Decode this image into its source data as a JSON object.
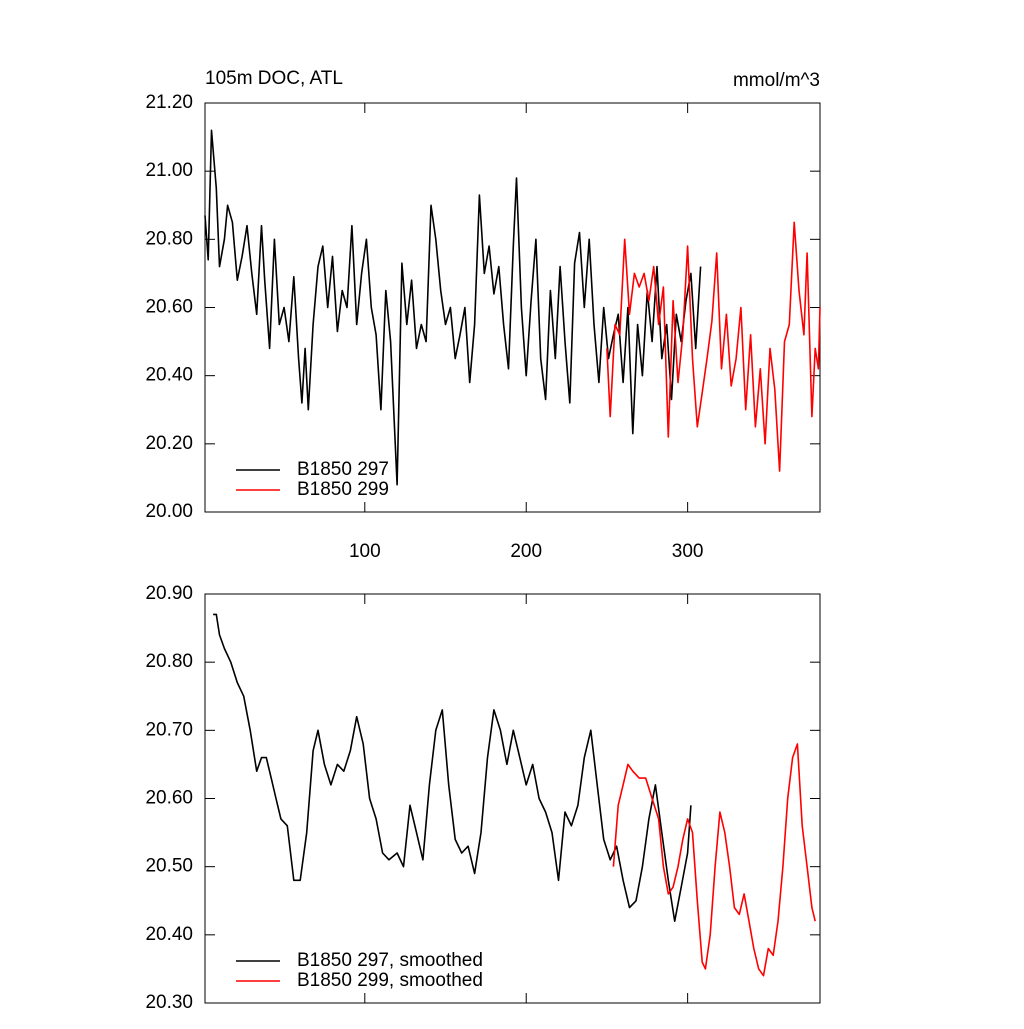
{
  "chart_data": [
    {
      "type": "line",
      "title": "105m DOC, ATL",
      "units": "mmol/m^3",
      "xlim": [
        1,
        382
      ],
      "xticks": [
        100,
        200,
        300
      ],
      "show_xtick_labels": true,
      "ylim": [
        20,
        21.2
      ],
      "yticks": [
        {
          "value": 20,
          "label": "20.00"
        },
        {
          "value": 20.2,
          "label": "20.20"
        },
        {
          "value": 20.4,
          "label": "20.40"
        },
        {
          "value": 20.6,
          "label": "20.60"
        },
        {
          "value": 20.8,
          "label": "20.80"
        },
        {
          "value": 21,
          "label": "21.00"
        },
        {
          "value": 21.2,
          "label": "21.20"
        }
      ],
      "legend": "lower left",
      "series": [
        {
          "name": "B1850 297",
          "color": "#000000",
          "x": [
            1,
            3,
            5,
            8,
            10,
            13,
            15,
            18,
            21,
            24,
            27,
            30,
            33,
            36,
            38,
            41,
            44,
            47,
            50,
            53,
            56,
            59,
            61,
            63,
            65,
            68,
            71,
            74,
            77,
            80,
            83,
            86,
            89,
            92,
            95,
            98,
            101,
            104,
            107,
            110,
            113,
            116,
            120,
            123,
            126,
            129,
            132,
            135,
            138,
            141,
            144,
            147,
            150,
            153,
            156,
            159,
            162,
            165,
            168,
            171,
            174,
            177,
            180,
            183,
            186,
            189,
            192,
            194,
            197,
            200,
            203,
            206,
            209,
            212,
            215,
            218,
            221,
            224,
            227,
            230,
            233,
            236,
            239,
            242,
            245,
            248,
            251,
            254,
            257,
            260,
            263,
            266,
            269,
            272,
            275,
            278,
            281,
            284,
            287,
            290,
            293,
            296,
            299,
            302,
            305,
            308
          ],
          "values": [
            20.87,
            20.74,
            21.12,
            20.95,
            20.72,
            20.8,
            20.9,
            20.85,
            20.68,
            20.75,
            20.84,
            20.7,
            20.58,
            20.84,
            20.68,
            20.48,
            20.8,
            20.55,
            20.6,
            20.5,
            20.69,
            20.45,
            20.32,
            20.48,
            20.3,
            20.55,
            20.72,
            20.78,
            20.6,
            20.75,
            20.53,
            20.65,
            20.6,
            20.84,
            20.55,
            20.7,
            20.8,
            20.6,
            20.52,
            20.3,
            20.65,
            20.5,
            20.08,
            20.73,
            20.55,
            20.68,
            20.48,
            20.55,
            20.5,
            20.9,
            20.8,
            20.65,
            20.55,
            20.6,
            20.45,
            20.52,
            20.6,
            20.38,
            20.55,
            20.93,
            20.7,
            20.78,
            20.64,
            20.72,
            20.55,
            20.42,
            20.78,
            20.98,
            20.6,
            20.4,
            20.62,
            20.8,
            20.45,
            20.33,
            20.65,
            20.45,
            20.72,
            20.5,
            20.32,
            20.73,
            20.82,
            20.6,
            20.8,
            20.55,
            20.38,
            20.6,
            20.45,
            20.52,
            20.58,
            20.38,
            20.6,
            20.23,
            20.55,
            20.4,
            20.65,
            20.5,
            20.72,
            20.45,
            20.55,
            20.33,
            20.58,
            20.5,
            20.62,
            20.7,
            20.48,
            20.72
          ]
        },
        {
          "name": "B1850 299",
          "color": "#ff0000",
          "x": [
            250,
            252,
            255,
            258,
            261,
            264,
            267,
            270,
            273,
            276,
            279,
            282,
            285,
            288,
            291,
            294,
            297,
            300,
            303,
            306,
            309,
            312,
            315,
            318,
            321,
            324,
            327,
            330,
            333,
            336,
            339,
            342,
            345,
            348,
            351,
            354,
            357,
            360,
            363,
            366,
            369,
            372,
            374,
            377,
            379,
            381,
            382
          ],
          "values": [
            20.48,
            20.28,
            20.55,
            20.52,
            20.8,
            20.58,
            20.7,
            20.66,
            20.7,
            20.62,
            20.72,
            20.55,
            20.66,
            20.22,
            20.62,
            20.38,
            20.52,
            20.78,
            20.45,
            20.25,
            20.35,
            20.45,
            20.56,
            20.76,
            20.42,
            20.58,
            20.37,
            20.45,
            20.6,
            20.3,
            20.52,
            20.25,
            20.42,
            20.2,
            20.48,
            20.36,
            20.12,
            20.5,
            20.55,
            20.85,
            20.65,
            20.52,
            20.76,
            20.28,
            20.48,
            20.42,
            20.6
          ]
        }
      ]
    },
    {
      "type": "line",
      "xlim": [
        1,
        382
      ],
      "xticks": [
        100,
        200,
        300
      ],
      "show_xtick_labels": false,
      "ylim": [
        20.3,
        20.9
      ],
      "yticks": [
        {
          "value": 20.3,
          "label": "20.30"
        },
        {
          "value": 20.4,
          "label": "20.40"
        },
        {
          "value": 20.5,
          "label": "20.50"
        },
        {
          "value": 20.6,
          "label": "20.60"
        },
        {
          "value": 20.7,
          "label": "20.70"
        },
        {
          "value": 20.8,
          "label": "20.80"
        },
        {
          "value": 20.9,
          "label": "20.90"
        }
      ],
      "legend": "lower left",
      "series": [
        {
          "name": "B1850 297, smoothed",
          "color": "#000000",
          "x": [
            6,
            8,
            10,
            13,
            17,
            21,
            25,
            29,
            33,
            36,
            39,
            42,
            45,
            48,
            52,
            56,
            60,
            64,
            68,
            71,
            75,
            79,
            83,
            87,
            91,
            95,
            99,
            103,
            107,
            111,
            115,
            120,
            124,
            128,
            132,
            136,
            140,
            144,
            148,
            152,
            156,
            160,
            164,
            168,
            172,
            176,
            180,
            184,
            188,
            192,
            196,
            200,
            204,
            208,
            212,
            216,
            220,
            224,
            228,
            232,
            236,
            240,
            244,
            248,
            252,
            256,
            260,
            264,
            268,
            272,
            276,
            280,
            284,
            288,
            292,
            296,
            300,
            302
          ],
          "values": [
            20.87,
            20.87,
            20.84,
            20.82,
            20.8,
            20.77,
            20.75,
            20.7,
            20.64,
            20.66,
            20.66,
            20.63,
            20.6,
            20.57,
            20.56,
            20.48,
            20.48,
            20.55,
            20.67,
            20.7,
            20.65,
            20.62,
            20.65,
            20.64,
            20.67,
            20.72,
            20.68,
            20.6,
            20.57,
            20.52,
            20.51,
            20.52,
            20.5,
            20.59,
            20.55,
            20.51,
            20.62,
            20.7,
            20.73,
            20.62,
            20.54,
            20.52,
            20.53,
            20.49,
            20.55,
            20.66,
            20.73,
            20.7,
            20.65,
            20.7,
            20.66,
            20.62,
            20.65,
            20.6,
            20.58,
            20.55,
            20.48,
            20.58,
            20.56,
            20.59,
            20.66,
            20.7,
            20.62,
            20.54,
            20.51,
            20.53,
            20.48,
            20.44,
            20.45,
            20.5,
            20.57,
            20.62,
            20.55,
            20.48,
            20.42,
            20.47,
            20.52,
            20.59
          ]
        },
        {
          "name": "B1850 299, smoothed",
          "color": "#ff0000",
          "x": [
            254,
            257,
            260,
            263,
            266,
            270,
            274,
            278,
            282,
            285,
            288,
            291,
            294,
            297,
            300,
            303,
            306,
            309,
            311,
            314,
            317,
            320,
            323,
            326,
            329,
            332,
            335,
            338,
            341,
            344,
            347,
            350,
            353,
            356,
            359,
            362,
            365,
            368,
            371,
            374,
            377,
            379
          ],
          "values": [
            20.5,
            20.59,
            20.62,
            20.65,
            20.64,
            20.63,
            20.63,
            20.6,
            20.57,
            20.5,
            20.46,
            20.47,
            20.5,
            20.54,
            20.57,
            20.55,
            20.45,
            20.36,
            20.35,
            20.4,
            20.5,
            20.58,
            20.55,
            20.5,
            20.44,
            20.43,
            20.46,
            20.42,
            20.38,
            20.35,
            20.34,
            20.38,
            20.37,
            20.42,
            20.5,
            20.6,
            20.66,
            20.68,
            20.56,
            20.5,
            20.44,
            20.42
          ]
        }
      ]
    }
  ]
}
